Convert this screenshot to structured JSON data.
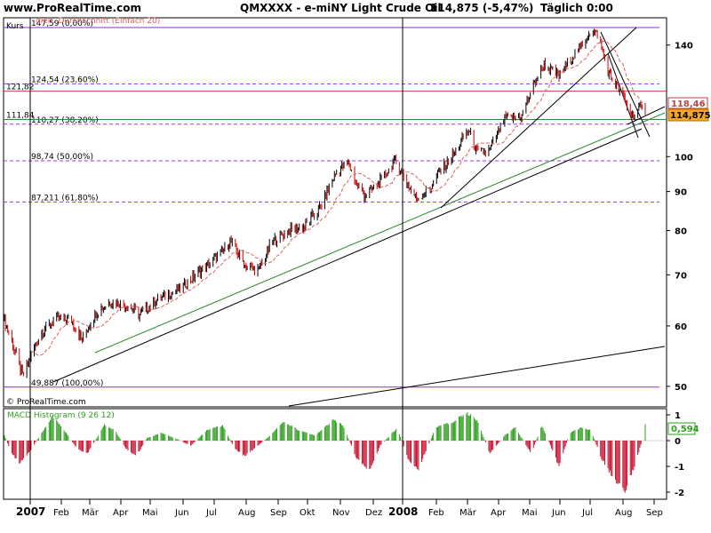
{
  "header": {
    "site": "www.ProRealTime.com",
    "symbol": "QMXXXX - e-miNY Light Crude Oil",
    "price_change": "114,875 (-5,47%)",
    "period": "Täglich  0:00"
  },
  "main_panel": {
    "kurs_label": "Kurs",
    "ma_label": "gleit. Durchschnitt (Einfach 20)",
    "watermark": "© ProRealTime.com",
    "price_axis": {
      "ticks": [
        {
          "value": 140,
          "label": "140"
        },
        {
          "value": 100,
          "label": "100"
        },
        {
          "value": 90,
          "label": "90"
        },
        {
          "value": 80,
          "label": "80"
        },
        {
          "value": 70,
          "label": "70"
        },
        {
          "value": 60,
          "label": "60"
        },
        {
          "value": 50,
          "label": "50"
        }
      ],
      "ma_value_box": "118,46",
      "last_price_box": "114,875"
    },
    "fib_levels": [
      {
        "value": 147.59,
        "label": "147,59 (0,00%)",
        "style": "solid",
        "color": "#8a2be2"
      },
      {
        "value": 124.54,
        "label": "124,54 (23,60%)",
        "style": "dashed",
        "color": "#9b30ff"
      },
      {
        "value": 110.27,
        "label": "110,27 (38,20%)",
        "style": "dashed",
        "color": "#9b30ff"
      },
      {
        "value": 98.74,
        "label": "98,74 (50,00%)",
        "style": "dashed",
        "color": "#9b30ff"
      },
      {
        "value": 87.211,
        "label": "87,211 (61,80%)",
        "style": "dashed",
        "color": "#9b30ff"
      },
      {
        "value": 49.887,
        "label": "49,887 (100,00%)",
        "style": "solid",
        "color": "#8a2be2"
      }
    ],
    "horizontal_levels": [
      {
        "value": 121.82,
        "label": "121,82",
        "color": "#c04040"
      },
      {
        "value": 111.84,
        "label": "111,84",
        "color": "#2e8b2e"
      }
    ]
  },
  "macd_panel": {
    "label": "MACD Histogram (9 26 12)",
    "last_value_box": "0,594",
    "ticks": [
      {
        "value": 1,
        "label": "1"
      },
      {
        "value": 0,
        "label": "0"
      },
      {
        "value": -1,
        "label": "-1"
      },
      {
        "value": -2,
        "label": "-2"
      }
    ]
  },
  "x_axis": {
    "months": [
      {
        "label": "2007",
        "bold": true
      },
      {
        "label": "Feb",
        "bold": false
      },
      {
        "label": "Mär",
        "bold": false
      },
      {
        "label": "Apr",
        "bold": false
      },
      {
        "label": "Mai",
        "bold": false
      },
      {
        "label": "Jun",
        "bold": false
      },
      {
        "label": "Jul",
        "bold": false
      },
      {
        "label": "Aug",
        "bold": false
      },
      {
        "label": "Sep",
        "bold": false
      },
      {
        "label": "Okt",
        "bold": false
      },
      {
        "label": "Nov",
        "bold": false
      },
      {
        "label": "Dez",
        "bold": false
      },
      {
        "label": "2008",
        "bold": true
      },
      {
        "label": "Feb",
        "bold": false
      },
      {
        "label": "Mär",
        "bold": false
      },
      {
        "label": "Apr",
        "bold": false
      },
      {
        "label": "Mai",
        "bold": false
      },
      {
        "label": "Jun",
        "bold": false
      },
      {
        "label": "Jul",
        "bold": false
      },
      {
        "label": "Aug",
        "bold": false
      },
      {
        "label": "Sep",
        "bold": false
      }
    ]
  },
  "colors": {
    "bull_candle": "#000000",
    "bear_candle": "#cc0000",
    "ma_line": "#e06060",
    "macd_positive": "#2e9e1e",
    "macd_negative": "#c8102e",
    "trendline_black": "#000000",
    "trendline_green": "#2e8b2e",
    "ma_box": "#c04040",
    "last_price_box": "#f5a623"
  },
  "chart_data": {
    "type": "candlestick",
    "title": "QMXXXX - e-miNY Light Crude Oil",
    "period": "daily",
    "x_range": [
      "2007-01",
      "2008-09"
    ],
    "ylim": [
      47,
      150
    ],
    "close_path": [
      {
        "date": "2007-01-01",
        "close": 61.0
      },
      {
        "date": "2007-01-10",
        "close": 56.0
      },
      {
        "date": "2007-01-18",
        "close": 51.5
      },
      {
        "date": "2007-01-25",
        "close": 54.5
      },
      {
        "date": "2007-02-05",
        "close": 59.0
      },
      {
        "date": "2007-02-20",
        "close": 61.5
      },
      {
        "date": "2007-03-05",
        "close": 61.0
      },
      {
        "date": "2007-03-15",
        "close": 57.5
      },
      {
        "date": "2007-03-28",
        "close": 62.5
      },
      {
        "date": "2007-04-10",
        "close": 64.5
      },
      {
        "date": "2007-04-25",
        "close": 64.0
      },
      {
        "date": "2007-05-08",
        "close": 62.0
      },
      {
        "date": "2007-05-25",
        "close": 65.0
      },
      {
        "date": "2007-06-10",
        "close": 66.5
      },
      {
        "date": "2007-06-25",
        "close": 69.0
      },
      {
        "date": "2007-07-10",
        "close": 72.0
      },
      {
        "date": "2007-07-25",
        "close": 75.0
      },
      {
        "date": "2007-08-01",
        "close": 77.5
      },
      {
        "date": "2007-08-15",
        "close": 72.0
      },
      {
        "date": "2007-08-28",
        "close": 71.0
      },
      {
        "date": "2007-09-10",
        "close": 77.5
      },
      {
        "date": "2007-09-25",
        "close": 80.0
      },
      {
        "date": "2007-10-10",
        "close": 81.0
      },
      {
        "date": "2007-10-25",
        "close": 86.0
      },
      {
        "date": "2007-11-10",
        "close": 96.0
      },
      {
        "date": "2007-11-20",
        "close": 98.0
      },
      {
        "date": "2007-11-28",
        "close": 92.0
      },
      {
        "date": "2007-12-05",
        "close": 89.0
      },
      {
        "date": "2007-12-15",
        "close": 91.0
      },
      {
        "date": "2007-12-28",
        "close": 96.0
      },
      {
        "date": "2008-01-03",
        "close": 99.0
      },
      {
        "date": "2008-01-15",
        "close": 92.0
      },
      {
        "date": "2008-01-23",
        "close": 88.0
      },
      {
        "date": "2008-02-05",
        "close": 91.0
      },
      {
        "date": "2008-02-15",
        "close": 96.0
      },
      {
        "date": "2008-02-28",
        "close": 101.0
      },
      {
        "date": "2008-03-12",
        "close": 108.5
      },
      {
        "date": "2008-03-20",
        "close": 101.0
      },
      {
        "date": "2008-04-01",
        "close": 102.0
      },
      {
        "date": "2008-04-15",
        "close": 112.0
      },
      {
        "date": "2008-05-01",
        "close": 113.0
      },
      {
        "date": "2008-05-12",
        "close": 124.0
      },
      {
        "date": "2008-05-22",
        "close": 132.0
      },
      {
        "date": "2008-06-05",
        "close": 127.5
      },
      {
        "date": "2008-06-16",
        "close": 134.5
      },
      {
        "date": "2008-06-27",
        "close": 140.0
      },
      {
        "date": "2008-07-03",
        "close": 145.5
      },
      {
        "date": "2008-07-11",
        "close": 145.0
      },
      {
        "date": "2008-07-22",
        "close": 128.0
      },
      {
        "date": "2008-08-05",
        "close": 119.0
      },
      {
        "date": "2008-08-12",
        "close": 113.0
      },
      {
        "date": "2008-08-20",
        "close": 115.5
      },
      {
        "date": "2008-08-25",
        "close": 114.875
      }
    ],
    "moving_average": {
      "name": "gleit. Durchschnitt (Einfach 20)",
      "last": 118.46
    },
    "last_price": 114.875,
    "change_pct": -5.47,
    "macd_histogram": {
      "name": "MACD Histogram (9 26 12)",
      "ylim": [
        -2.2,
        1.3
      ],
      "last": 0.594,
      "path": [
        {
          "date": "2007-01-01",
          "value": 0.2
        },
        {
          "date": "2007-01-08",
          "value": -0.5
        },
        {
          "date": "2007-01-15",
          "value": -0.9
        },
        {
          "date": "2007-01-25",
          "value": -0.4
        },
        {
          "date": "2007-02-05",
          "value": 0.3
        },
        {
          "date": "2007-02-15",
          "value": 0.95
        },
        {
          "date": "2007-02-28",
          "value": 0.3
        },
        {
          "date": "2007-03-10",
          "value": -0.3
        },
        {
          "date": "2007-03-20",
          "value": -0.5
        },
        {
          "date": "2007-04-05",
          "value": 0.6
        },
        {
          "date": "2007-04-15",
          "value": 0.4
        },
        {
          "date": "2007-04-25",
          "value": -0.3
        },
        {
          "date": "2007-05-05",
          "value": -0.6
        },
        {
          "date": "2007-05-15",
          "value": 0.1
        },
        {
          "date": "2007-05-28",
          "value": 0.3
        },
        {
          "date": "2007-06-10",
          "value": 0.1
        },
        {
          "date": "2007-06-25",
          "value": -0.2
        },
        {
          "date": "2007-07-10",
          "value": 0.4
        },
        {
          "date": "2007-07-25",
          "value": 0.6
        },
        {
          "date": "2007-08-05",
          "value": -0.3
        },
        {
          "date": "2007-08-15",
          "value": -0.6
        },
        {
          "date": "2007-09-05",
          "value": 0.1
        },
        {
          "date": "2007-09-20",
          "value": 0.7
        },
        {
          "date": "2007-10-05",
          "value": 0.4
        },
        {
          "date": "2007-10-20",
          "value": 0.2
        },
        {
          "date": "2007-11-05",
          "value": 0.8
        },
        {
          "date": "2007-11-15",
          "value": 0.6
        },
        {
          "date": "2007-11-28",
          "value": -0.7
        },
        {
          "date": "2007-12-10",
          "value": -1.2
        },
        {
          "date": "2007-12-20",
          "value": -0.2
        },
        {
          "date": "2008-01-05",
          "value": 0.5
        },
        {
          "date": "2008-01-15",
          "value": -0.7
        },
        {
          "date": "2008-01-25",
          "value": -1.1
        },
        {
          "date": "2008-02-10",
          "value": 0.5
        },
        {
          "date": "2008-02-25",
          "value": 0.7
        },
        {
          "date": "2008-03-10",
          "value": 1.1
        },
        {
          "date": "2008-03-20",
          "value": 0.8
        },
        {
          "date": "2008-04-01",
          "value": -0.5
        },
        {
          "date": "2008-04-15",
          "value": 0.2
        },
        {
          "date": "2008-04-25",
          "value": 0.5
        },
        {
          "date": "2008-05-10",
          "value": -0.5
        },
        {
          "date": "2008-05-20",
          "value": 0.6
        },
        {
          "date": "2008-06-05",
          "value": -1.0
        },
        {
          "date": "2008-06-15",
          "value": 0.3
        },
        {
          "date": "2008-06-25",
          "value": 0.5
        },
        {
          "date": "2008-07-05",
          "value": 0.4
        },
        {
          "date": "2008-07-15",
          "value": -0.7
        },
        {
          "date": "2008-07-28",
          "value": -1.6
        },
        {
          "date": "2008-08-05",
          "value": -2.0
        },
        {
          "date": "2008-08-15",
          "value": -1.0
        },
        {
          "date": "2008-08-22",
          "value": 0.0
        },
        {
          "date": "2008-08-25",
          "value": 0.594
        }
      ]
    }
  }
}
